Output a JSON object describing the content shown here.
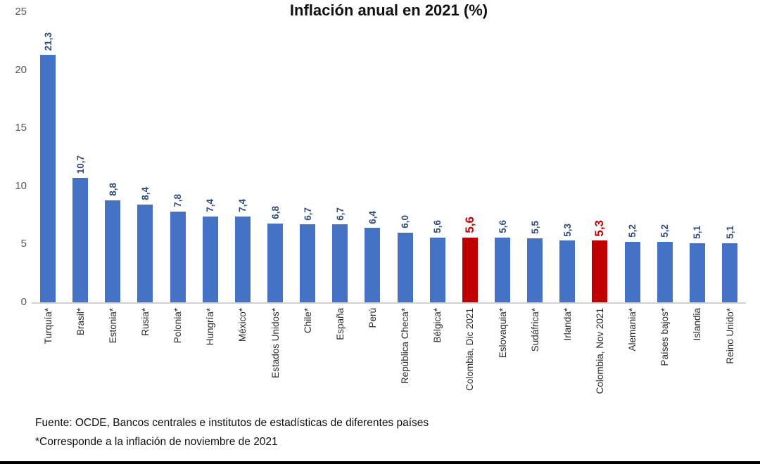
{
  "chart_data": {
    "type": "bar",
    "title": "Inflación anual en 2021 (%)",
    "categories": [
      "Turquía*",
      "Brasil*",
      "Estonia*",
      "Rusia*",
      "Polonia*",
      "Hungría*",
      "México*",
      "Estados Unidos*",
      "Chile*",
      "España",
      "Perú",
      "República Checa*",
      "Bélgica*",
      "Colombia, Dic 2021",
      "Eslovaquia*",
      "Sudáfrica*",
      "Irlanda*",
      "Colombia, Nov 2021",
      "Alemania*",
      "Países bajos*",
      "Islandia",
      "Reino Unido*"
    ],
    "values": [
      21.3,
      10.7,
      8.8,
      8.4,
      7.8,
      7.4,
      7.4,
      6.8,
      6.7,
      6.7,
      6.4,
      6.0,
      5.6,
      5.6,
      5.6,
      5.5,
      5.3,
      5.3,
      5.2,
      5.2,
      5.1,
      5.1
    ],
    "value_labels": [
      "21,3",
      "10,7",
      "8,8",
      "8,4",
      "7,8",
      "7,4",
      "7,4",
      "6,8",
      "6,7",
      "6,7",
      "6,4",
      "6,0",
      "5,6",
      "5,6",
      "5,6",
      "5,5",
      "5,3",
      "5,3",
      "5,2",
      "5,2",
      "5,1",
      "5,1"
    ],
    "highlighted_indices": [
      13,
      17
    ],
    "bar_color": "#4472c4",
    "highlight_color": "#c00000",
    "value_label_color": "#2e4b7a",
    "highlight_label_color": "#c00000",
    "xlabel": "",
    "ylabel": "",
    "ylim": [
      0,
      25
    ],
    "yticks": [
      "0",
      "5",
      "10",
      "15",
      "20",
      "25"
    ],
    "grid": false,
    "legend": false
  },
  "footer": {
    "source_line": "Fuente: OCDE, Bancos centrales e institutos de estadísticas de diferentes países",
    "note_line": "*Corresponde a la inflación de noviembre de 2021"
  }
}
